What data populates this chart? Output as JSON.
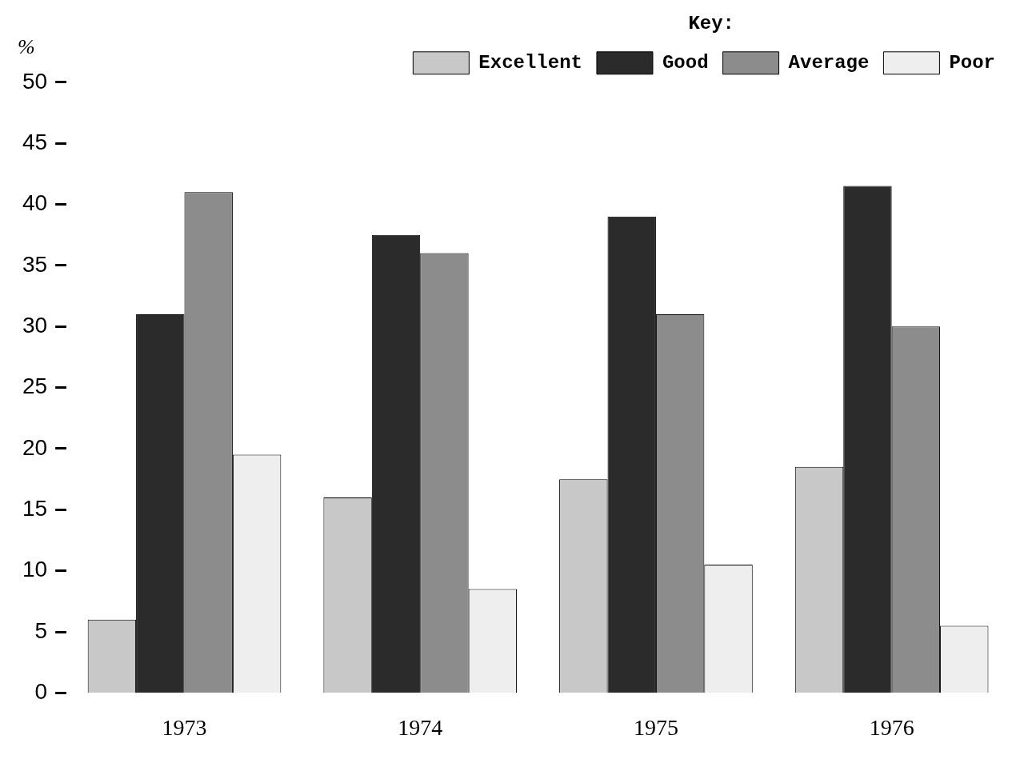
{
  "chart_data": {
    "type": "bar",
    "ylabel": "%",
    "legend_title": "Key:",
    "categories": [
      "1973",
      "1974",
      "1975",
      "1976"
    ],
    "series": [
      {
        "name": "Excellent",
        "color": "#c8c8c8",
        "values": [
          6,
          16,
          17.5,
          18.5
        ]
      },
      {
        "name": "Good",
        "color": "#2b2b2b",
        "values": [
          31,
          37.5,
          39,
          41.5
        ]
      },
      {
        "name": "Average",
        "color": "#8c8c8c",
        "values": [
          41,
          36,
          31,
          30
        ]
      },
      {
        "name": "Poor",
        "color": "#eeeeee",
        "values": [
          19.5,
          8.5,
          10.5,
          5.5
        ]
      }
    ],
    "ylim": [
      0,
      50
    ],
    "yticks": [
      0,
      5,
      10,
      15,
      20,
      25,
      30,
      35,
      40,
      45,
      50
    ],
    "grid": false,
    "legend": "top right"
  }
}
